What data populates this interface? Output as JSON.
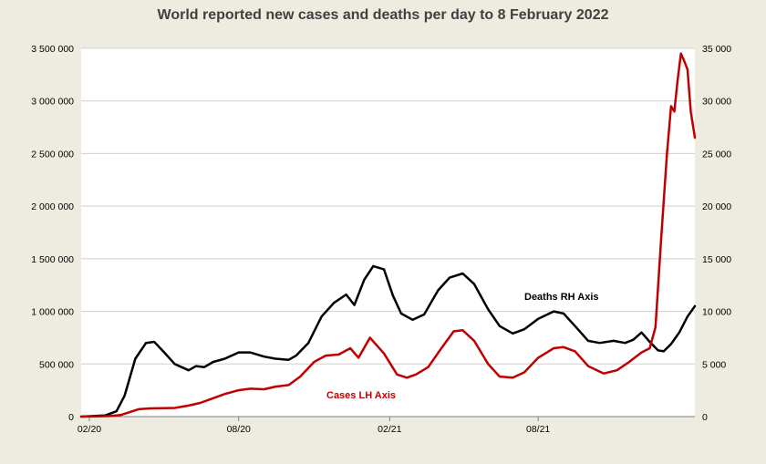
{
  "chart_data": {
    "type": "line",
    "title": "World reported new cases and deaths per day to 8 February 2022",
    "x_tick_labels": [
      "02/20",
      "08/20",
      "02/21",
      "08/21"
    ],
    "x_ticks": [
      "2020-02-01",
      "2020-08-01",
      "2021-02-01",
      "2021-08-01"
    ],
    "x_range": [
      "2020-01-22",
      "2022-02-08"
    ],
    "left_axis": {
      "range": [
        0,
        3500000
      ],
      "tick_labels": [
        "0",
        "500 000",
        "1 000 000",
        "1 500 000",
        "2 000 000",
        "2 500 000",
        "3 000 000",
        "3 500 000"
      ]
    },
    "right_axis": {
      "range": [
        0,
        35000
      ],
      "tick_labels": [
        "0",
        "5 000",
        "10 000",
        "15 000",
        "20 000",
        "25 000",
        "30 000",
        "35 000"
      ]
    },
    "grid": true,
    "series": [
      {
        "name": "Cases LH Axis",
        "axis": "left",
        "color": "#c00000",
        "points": [
          [
            "2020-01-22",
            0
          ],
          [
            "2020-02-10",
            3000
          ],
          [
            "2020-02-25",
            5000
          ],
          [
            "2020-03-10",
            15000
          ],
          [
            "2020-03-20",
            40000
          ],
          [
            "2020-04-01",
            70000
          ],
          [
            "2020-04-15",
            78000
          ],
          [
            "2020-05-01",
            80000
          ],
          [
            "2020-05-15",
            82000
          ],
          [
            "2020-06-01",
            105000
          ],
          [
            "2020-06-15",
            130000
          ],
          [
            "2020-07-01",
            175000
          ],
          [
            "2020-07-15",
            215000
          ],
          [
            "2020-08-01",
            250000
          ],
          [
            "2020-08-15",
            265000
          ],
          [
            "2020-09-01",
            260000
          ],
          [
            "2020-09-15",
            285000
          ],
          [
            "2020-10-01",
            300000
          ],
          [
            "2020-10-15",
            380000
          ],
          [
            "2020-11-01",
            520000
          ],
          [
            "2020-11-15",
            580000
          ],
          [
            "2020-12-01",
            590000
          ],
          [
            "2020-12-15",
            650000
          ],
          [
            "2020-12-25",
            560000
          ],
          [
            "2021-01-08",
            750000
          ],
          [
            "2021-01-25",
            600000
          ],
          [
            "2021-02-10",
            400000
          ],
          [
            "2021-02-22",
            370000
          ],
          [
            "2021-03-05",
            400000
          ],
          [
            "2021-03-20",
            470000
          ],
          [
            "2021-04-05",
            650000
          ],
          [
            "2021-04-20",
            810000
          ],
          [
            "2021-05-01",
            820000
          ],
          [
            "2021-05-15",
            720000
          ],
          [
            "2021-06-01",
            500000
          ],
          [
            "2021-06-15",
            380000
          ],
          [
            "2021-07-01",
            370000
          ],
          [
            "2021-07-15",
            420000
          ],
          [
            "2021-08-01",
            560000
          ],
          [
            "2021-08-20",
            650000
          ],
          [
            "2021-09-01",
            660000
          ],
          [
            "2021-09-15",
            620000
          ],
          [
            "2021-10-01",
            480000
          ],
          [
            "2021-10-20",
            410000
          ],
          [
            "2021-11-05",
            440000
          ],
          [
            "2021-11-20",
            520000
          ],
          [
            "2021-12-05",
            610000
          ],
          [
            "2021-12-15",
            650000
          ],
          [
            "2021-12-22",
            850000
          ],
          [
            "2021-12-29",
            1700000
          ],
          [
            "2022-01-05",
            2500000
          ],
          [
            "2022-01-10",
            2950000
          ],
          [
            "2022-01-14",
            2900000
          ],
          [
            "2022-01-18",
            3200000
          ],
          [
            "2022-01-22",
            3450000
          ],
          [
            "2022-01-26",
            3380000
          ],
          [
            "2022-01-30",
            3300000
          ],
          [
            "2022-02-03",
            2900000
          ],
          [
            "2022-02-08",
            2650000
          ]
        ]
      },
      {
        "name": "Deaths RH Axis",
        "axis": "right",
        "color": "#000000",
        "points": [
          [
            "2020-01-22",
            0
          ],
          [
            "2020-02-20",
            100
          ],
          [
            "2020-03-05",
            500
          ],
          [
            "2020-03-15",
            2000
          ],
          [
            "2020-03-28",
            5500
          ],
          [
            "2020-04-10",
            7000
          ],
          [
            "2020-04-20",
            7100
          ],
          [
            "2020-05-01",
            6200
          ],
          [
            "2020-05-15",
            5000
          ],
          [
            "2020-06-01",
            4400
          ],
          [
            "2020-06-10",
            4800
          ],
          [
            "2020-06-20",
            4700
          ],
          [
            "2020-07-01",
            5200
          ],
          [
            "2020-07-15",
            5500
          ],
          [
            "2020-08-01",
            6100
          ],
          [
            "2020-08-15",
            6100
          ],
          [
            "2020-09-01",
            5700
          ],
          [
            "2020-09-15",
            5500
          ],
          [
            "2020-10-01",
            5400
          ],
          [
            "2020-10-10",
            5800
          ],
          [
            "2020-10-25",
            7000
          ],
          [
            "2020-11-10",
            9500
          ],
          [
            "2020-11-25",
            10800
          ],
          [
            "2020-12-10",
            11600
          ],
          [
            "2020-12-20",
            10600
          ],
          [
            "2021-01-01",
            13000
          ],
          [
            "2021-01-12",
            14300
          ],
          [
            "2021-01-25",
            14000
          ],
          [
            "2021-02-05",
            11500
          ],
          [
            "2021-02-15",
            9800
          ],
          [
            "2021-03-01",
            9200
          ],
          [
            "2021-03-15",
            9700
          ],
          [
            "2021-04-01",
            12000
          ],
          [
            "2021-04-15",
            13200
          ],
          [
            "2021-05-01",
            13600
          ],
          [
            "2021-05-15",
            12600
          ],
          [
            "2021-06-01",
            10200
          ],
          [
            "2021-06-15",
            8600
          ],
          [
            "2021-07-01",
            7900
          ],
          [
            "2021-07-15",
            8300
          ],
          [
            "2021-08-01",
            9300
          ],
          [
            "2021-08-20",
            10000
          ],
          [
            "2021-09-01",
            9800
          ],
          [
            "2021-09-15",
            8600
          ],
          [
            "2021-10-01",
            7200
          ],
          [
            "2021-10-15",
            7000
          ],
          [
            "2021-11-01",
            7200
          ],
          [
            "2021-11-15",
            7000
          ],
          [
            "2021-11-25",
            7300
          ],
          [
            "2021-12-05",
            8000
          ],
          [
            "2021-12-15",
            7100
          ],
          [
            "2021-12-25",
            6300
          ],
          [
            "2022-01-01",
            6200
          ],
          [
            "2022-01-10",
            6900
          ],
          [
            "2022-01-20",
            8000
          ],
          [
            "2022-01-30",
            9500
          ],
          [
            "2022-02-08",
            10500
          ]
        ]
      }
    ],
    "annotations": [
      {
        "text": "Deaths RH Axis",
        "series": "Deaths RH Axis"
      },
      {
        "text": "Cases LH Axis",
        "series": "Cases LH Axis"
      }
    ]
  }
}
